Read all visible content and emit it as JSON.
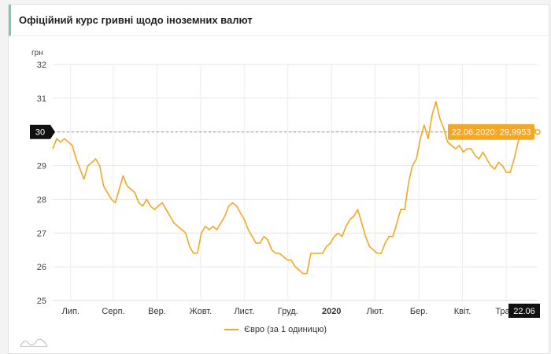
{
  "header": {
    "title": "Офіційний курс гривні щодо іноземних валют"
  },
  "chart_data": {
    "type": "line",
    "ylabel": "грн",
    "ylim": [
      25,
      32
    ],
    "yticks": [
      25,
      26,
      27,
      28,
      29,
      30,
      31,
      32
    ],
    "grid": true,
    "x_axis_labels": [
      {
        "label": "Лип.",
        "pos": 0.037
      },
      {
        "label": "Серп.",
        "pos": 0.125
      },
      {
        "label": "Вер.",
        "pos": 0.215
      },
      {
        "label": "Жовт.",
        "pos": 0.305
      },
      {
        "label": "Лист.",
        "pos": 0.395
      },
      {
        "label": "Груд.",
        "pos": 0.485
      },
      {
        "label": "2020",
        "pos": 0.575,
        "bold": true
      },
      {
        "label": "Лют.",
        "pos": 0.665
      },
      {
        "label": "Бер.",
        "pos": 0.755
      },
      {
        "label": "Квіт.",
        "pos": 0.845
      },
      {
        "label": "Трав.",
        "pos": 0.935
      }
    ],
    "current_x_label": "22.06",
    "current_y_label": "30",
    "tooltip": "22.06.2020: 29,9953",
    "series": [
      {
        "name": "Євро (за 1 одиницю)",
        "color": "#f5a623",
        "values": [
          29.5,
          29.8,
          29.7,
          29.8,
          29.7,
          29.6,
          29.2,
          28.9,
          28.6,
          29.0,
          29.1,
          29.2,
          29.0,
          28.4,
          28.2,
          28.0,
          27.9,
          28.3,
          28.7,
          28.4,
          28.3,
          28.2,
          27.9,
          27.8,
          28.0,
          27.8,
          27.7,
          27.8,
          27.9,
          27.7,
          27.5,
          27.3,
          27.2,
          27.1,
          27.0,
          26.6,
          26.4,
          26.4,
          27.0,
          27.2,
          27.1,
          27.2,
          27.1,
          27.3,
          27.5,
          27.8,
          27.9,
          27.8,
          27.6,
          27.4,
          27.1,
          26.9,
          26.7,
          26.7,
          26.9,
          26.8,
          26.5,
          26.4,
          26.4,
          26.3,
          26.2,
          26.2,
          26.0,
          25.9,
          25.8,
          25.8,
          26.4,
          26.4,
          26.4,
          26.4,
          26.6,
          26.7,
          26.9,
          27.0,
          26.9,
          27.2,
          27.4,
          27.5,
          27.7,
          27.3,
          26.9,
          26.6,
          26.5,
          26.4,
          26.4,
          26.7,
          26.9,
          26.9,
          27.3,
          27.7,
          27.7,
          28.5,
          29.0,
          29.2,
          29.8,
          30.2,
          29.8,
          30.5,
          30.9,
          30.4,
          30.1,
          29.7,
          29.6,
          29.5,
          29.6,
          29.4,
          29.5,
          29.5,
          29.3,
          29.2,
          29.4,
          29.2,
          29.0,
          28.9,
          29.1,
          29.0,
          28.8,
          28.8,
          29.2,
          29.7,
          30.0,
          30.2,
          30.2,
          30.1,
          30.0
        ]
      }
    ]
  }
}
